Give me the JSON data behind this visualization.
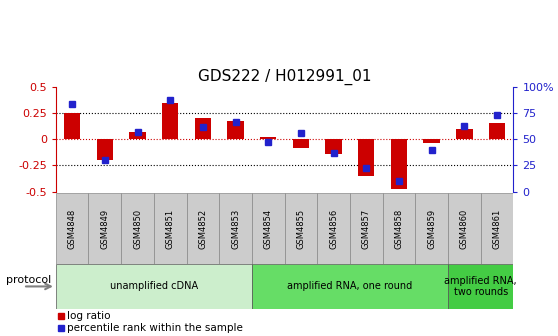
{
  "title": "GDS222 / H012991_01",
  "samples": [
    "GSM4848",
    "GSM4849",
    "GSM4850",
    "GSM4851",
    "GSM4852",
    "GSM4853",
    "GSM4854",
    "GSM4855",
    "GSM4856",
    "GSM4857",
    "GSM4858",
    "GSM4859",
    "GSM4860",
    "GSM4861"
  ],
  "log_ratio": [
    0.25,
    -0.2,
    0.07,
    0.35,
    0.21,
    0.18,
    0.02,
    -0.08,
    -0.14,
    -0.35,
    -0.48,
    -0.03,
    0.1,
    0.16
  ],
  "percentile": [
    84,
    30,
    57,
    88,
    62,
    67,
    48,
    56,
    37,
    23,
    10,
    40,
    63,
    73
  ],
  "ylim_left": [
    -0.5,
    0.5
  ],
  "ylim_right": [
    0,
    100
  ],
  "bar_color": "#cc0000",
  "dot_color": "#2222cc",
  "axis_color_left": "#cc0000",
  "axis_color_right": "#2222cc",
  "protocol_groups": [
    {
      "label": "unamplified cDNA",
      "start": 0,
      "end": 6,
      "color": "#cceecc"
    },
    {
      "label": "amplified RNA, one round",
      "start": 6,
      "end": 12,
      "color": "#66dd66"
    },
    {
      "label": "amplified RNA,\ntwo rounds",
      "start": 12,
      "end": 14,
      "color": "#44cc44"
    }
  ],
  "protocol_label": "protocol",
  "legend_items": [
    {
      "label": "log ratio",
      "color": "#cc0000"
    },
    {
      "label": "percentile rank within the sample",
      "color": "#2222cc"
    }
  ]
}
